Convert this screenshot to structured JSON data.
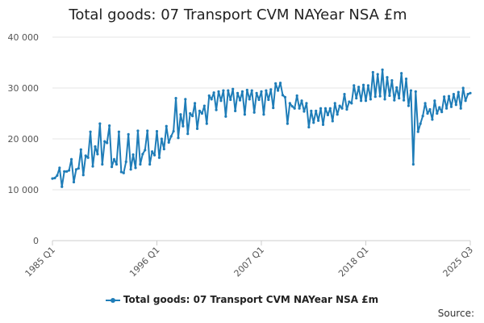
{
  "chart_data": {
    "type": "line",
    "title": "Total goods: 07 Transport CVM NAYear NSA £m",
    "xlabel": "",
    "ylabel": "",
    "ylim": [
      0,
      40000
    ],
    "yticks": [
      0,
      10000,
      20000,
      30000,
      40000
    ],
    "ytick_labels": [
      "0",
      "10 000",
      "20 000",
      "30 000",
      "40 000"
    ],
    "xtick_labels": [
      "1985 Q1",
      "1996 Q1",
      "2007 Q1",
      "2018 Q1",
      "2025 Q3"
    ],
    "x_start": "1985 Q1",
    "x_end": "2025 Q3",
    "grid": "horizontal",
    "color": "#1f7db8",
    "legend_position": "bottom",
    "series": [
      {
        "name": "Total goods: 07 Transport CVM NAYear NSA £m",
        "values": [
          12200,
          12300,
          12800,
          14300,
          10600,
          13600,
          13600,
          13800,
          16000,
          11500,
          14000,
          14200,
          17900,
          12900,
          16700,
          16300,
          21400,
          14600,
          18500,
          17000,
          23000,
          15000,
          19500,
          19200,
          22600,
          14500,
          16000,
          15000,
          21400,
          13500,
          13300,
          15500,
          20900,
          14000,
          16900,
          14300,
          21600,
          15000,
          17000,
          17800,
          21600,
          15000,
          17500,
          16800,
          21500,
          16300,
          20000,
          18000,
          22500,
          19300,
          20500,
          21500,
          28000,
          20200,
          24800,
          22500,
          27800,
          21000,
          25000,
          24500,
          27000,
          22000,
          25500,
          25000,
          26500,
          23000,
          28500,
          27800,
          29100,
          25700,
          29300,
          27500,
          29500,
          24400,
          29500,
          27700,
          29800,
          25500,
          29000,
          27600,
          29300,
          24800,
          29600,
          27800,
          29500,
          25200,
          29000,
          27700,
          29300,
          24800,
          29500,
          27700,
          29700,
          26100,
          30900,
          29500,
          31000,
          28600,
          28200,
          23000,
          27000,
          26400,
          26000,
          28500,
          26000,
          27500,
          25400,
          27000,
          22300,
          25500,
          23200,
          25500,
          23600,
          26000,
          22800,
          26000,
          24700,
          26000,
          23500,
          27000,
          24800,
          26500,
          26000,
          28800,
          25800,
          27300,
          27000,
          30500,
          28000,
          30200,
          27500,
          30600,
          27500,
          30500,
          27800,
          33100,
          28300,
          32700,
          28400,
          33600,
          27800,
          32100,
          28500,
          31500,
          27600,
          30100,
          28000,
          32900,
          27600,
          31800,
          26500,
          29500,
          15000,
          29300,
          21400,
          23000,
          24500,
          27000,
          25000,
          25800,
          23800,
          27500,
          25000,
          26200,
          25300,
          28300,
          26000,
          28400,
          26300,
          28800,
          26700,
          29200,
          26000,
          30000,
          27500,
          28800,
          29000
        ]
      }
    ],
    "source_label": "Source:"
  }
}
